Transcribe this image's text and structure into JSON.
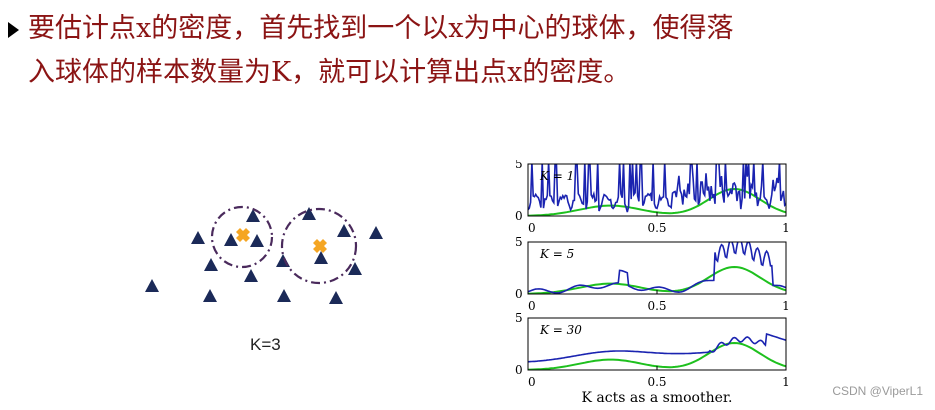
{
  "text": {
    "line1": "要估计点x的密度，首先找到一个以x为中心的球体，使得落",
    "line2": "入球体的样本数量为K，就可以计算出点x的密度。"
  },
  "knn_figure": {
    "label": "K=3",
    "colors": {
      "triangle": "#1b2a58",
      "cross": "#f5a623",
      "circle": "#4a2a5c"
    }
  },
  "smoother_figure": {
    "caption": "K acts as a smoother.",
    "panels": [
      {
        "label": "K = 1",
        "y_ticks": [
          "5",
          "0"
        ],
        "x_ticks": [
          "0",
          "0.5",
          "1"
        ]
      },
      {
        "label": "K = 5",
        "y_ticks": [
          "5",
          "0"
        ],
        "x_ticks": [
          "0",
          "0.5",
          "1"
        ]
      },
      {
        "label": "K = 30",
        "y_ticks": [
          "5",
          "0"
        ],
        "x_ticks": [
          "0",
          "0.5",
          "1"
        ]
      }
    ],
    "colors": {
      "estimate": "#1a23b0",
      "true_density": "#1ec01e"
    }
  },
  "watermark": "CSDN @ViperL1"
}
